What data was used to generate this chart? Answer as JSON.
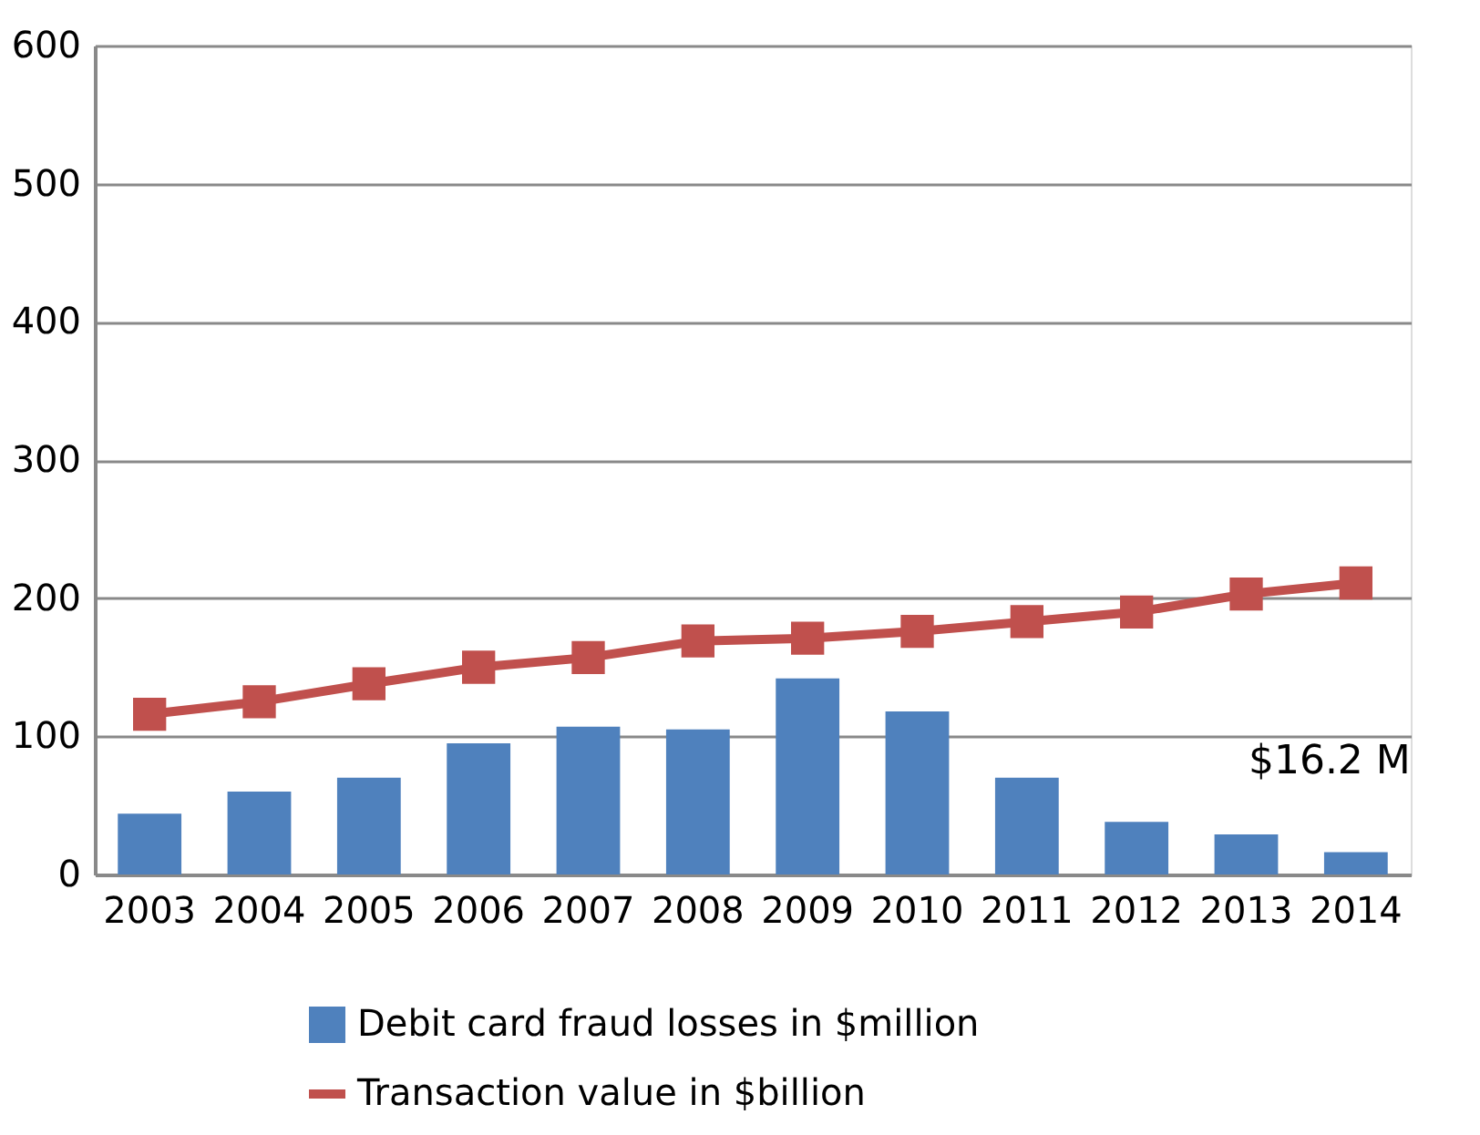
{
  "chart_data": {
    "type": "bar",
    "categories": [
      "2003",
      "2004",
      "2005",
      "2006",
      "2007",
      "2008",
      "2009",
      "2010",
      "2011",
      "2012",
      "2013",
      "2014"
    ],
    "series": [
      {
        "name": "Debit card fraud losses in $million",
        "color": "#4f81bd",
        "values": [
          44,
          60,
          70,
          95,
          107,
          105,
          142,
          118,
          70,
          38,
          29,
          16.2
        ]
      },
      {
        "name": "Transaction value in $billion",
        "type": "line",
        "color": "#c0504d",
        "marker": "square",
        "values": [
          116,
          125,
          138,
          150,
          157,
          169,
          171,
          176,
          183,
          190,
          203,
          211
        ]
      }
    ],
    "ylim": [
      0,
      600
    ],
    "yticks": [
      0,
      100,
      200,
      300,
      400,
      500,
      600
    ],
    "grid": "y",
    "legend": "bottom",
    "annotations": [
      {
        "text": "$16.2 M",
        "x": "2014",
        "y": 16.2
      }
    ]
  }
}
